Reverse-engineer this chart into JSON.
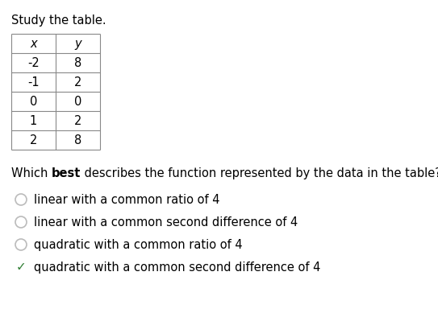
{
  "title": "Study the table.",
  "table_x": [
    "-2",
    "-1",
    "0",
    "1",
    "2"
  ],
  "table_y": [
    "8",
    "2",
    "0",
    "2",
    "8"
  ],
  "col_headers": [
    "x",
    "y"
  ],
  "question_pre": "Which ",
  "question_bold": "best",
  "question_post": " describes the function represented by the data in the table?",
  "options": [
    "linear with a common ratio of 4",
    "linear with a common second difference of 4",
    "quadratic with a common ratio of 4",
    "quadratic with a common second difference of 4"
  ],
  "correct_index": 3,
  "bg_color": "#ffffff",
  "text_color": "#000000",
  "table_border_color": "#888888",
  "checkmark_color": "#2e7d32",
  "radio_color": "#bbbbbb",
  "title_fontsize": 10.5,
  "option_fontsize": 10.5,
  "question_fontsize": 10.5,
  "table_fontsize": 10.5
}
